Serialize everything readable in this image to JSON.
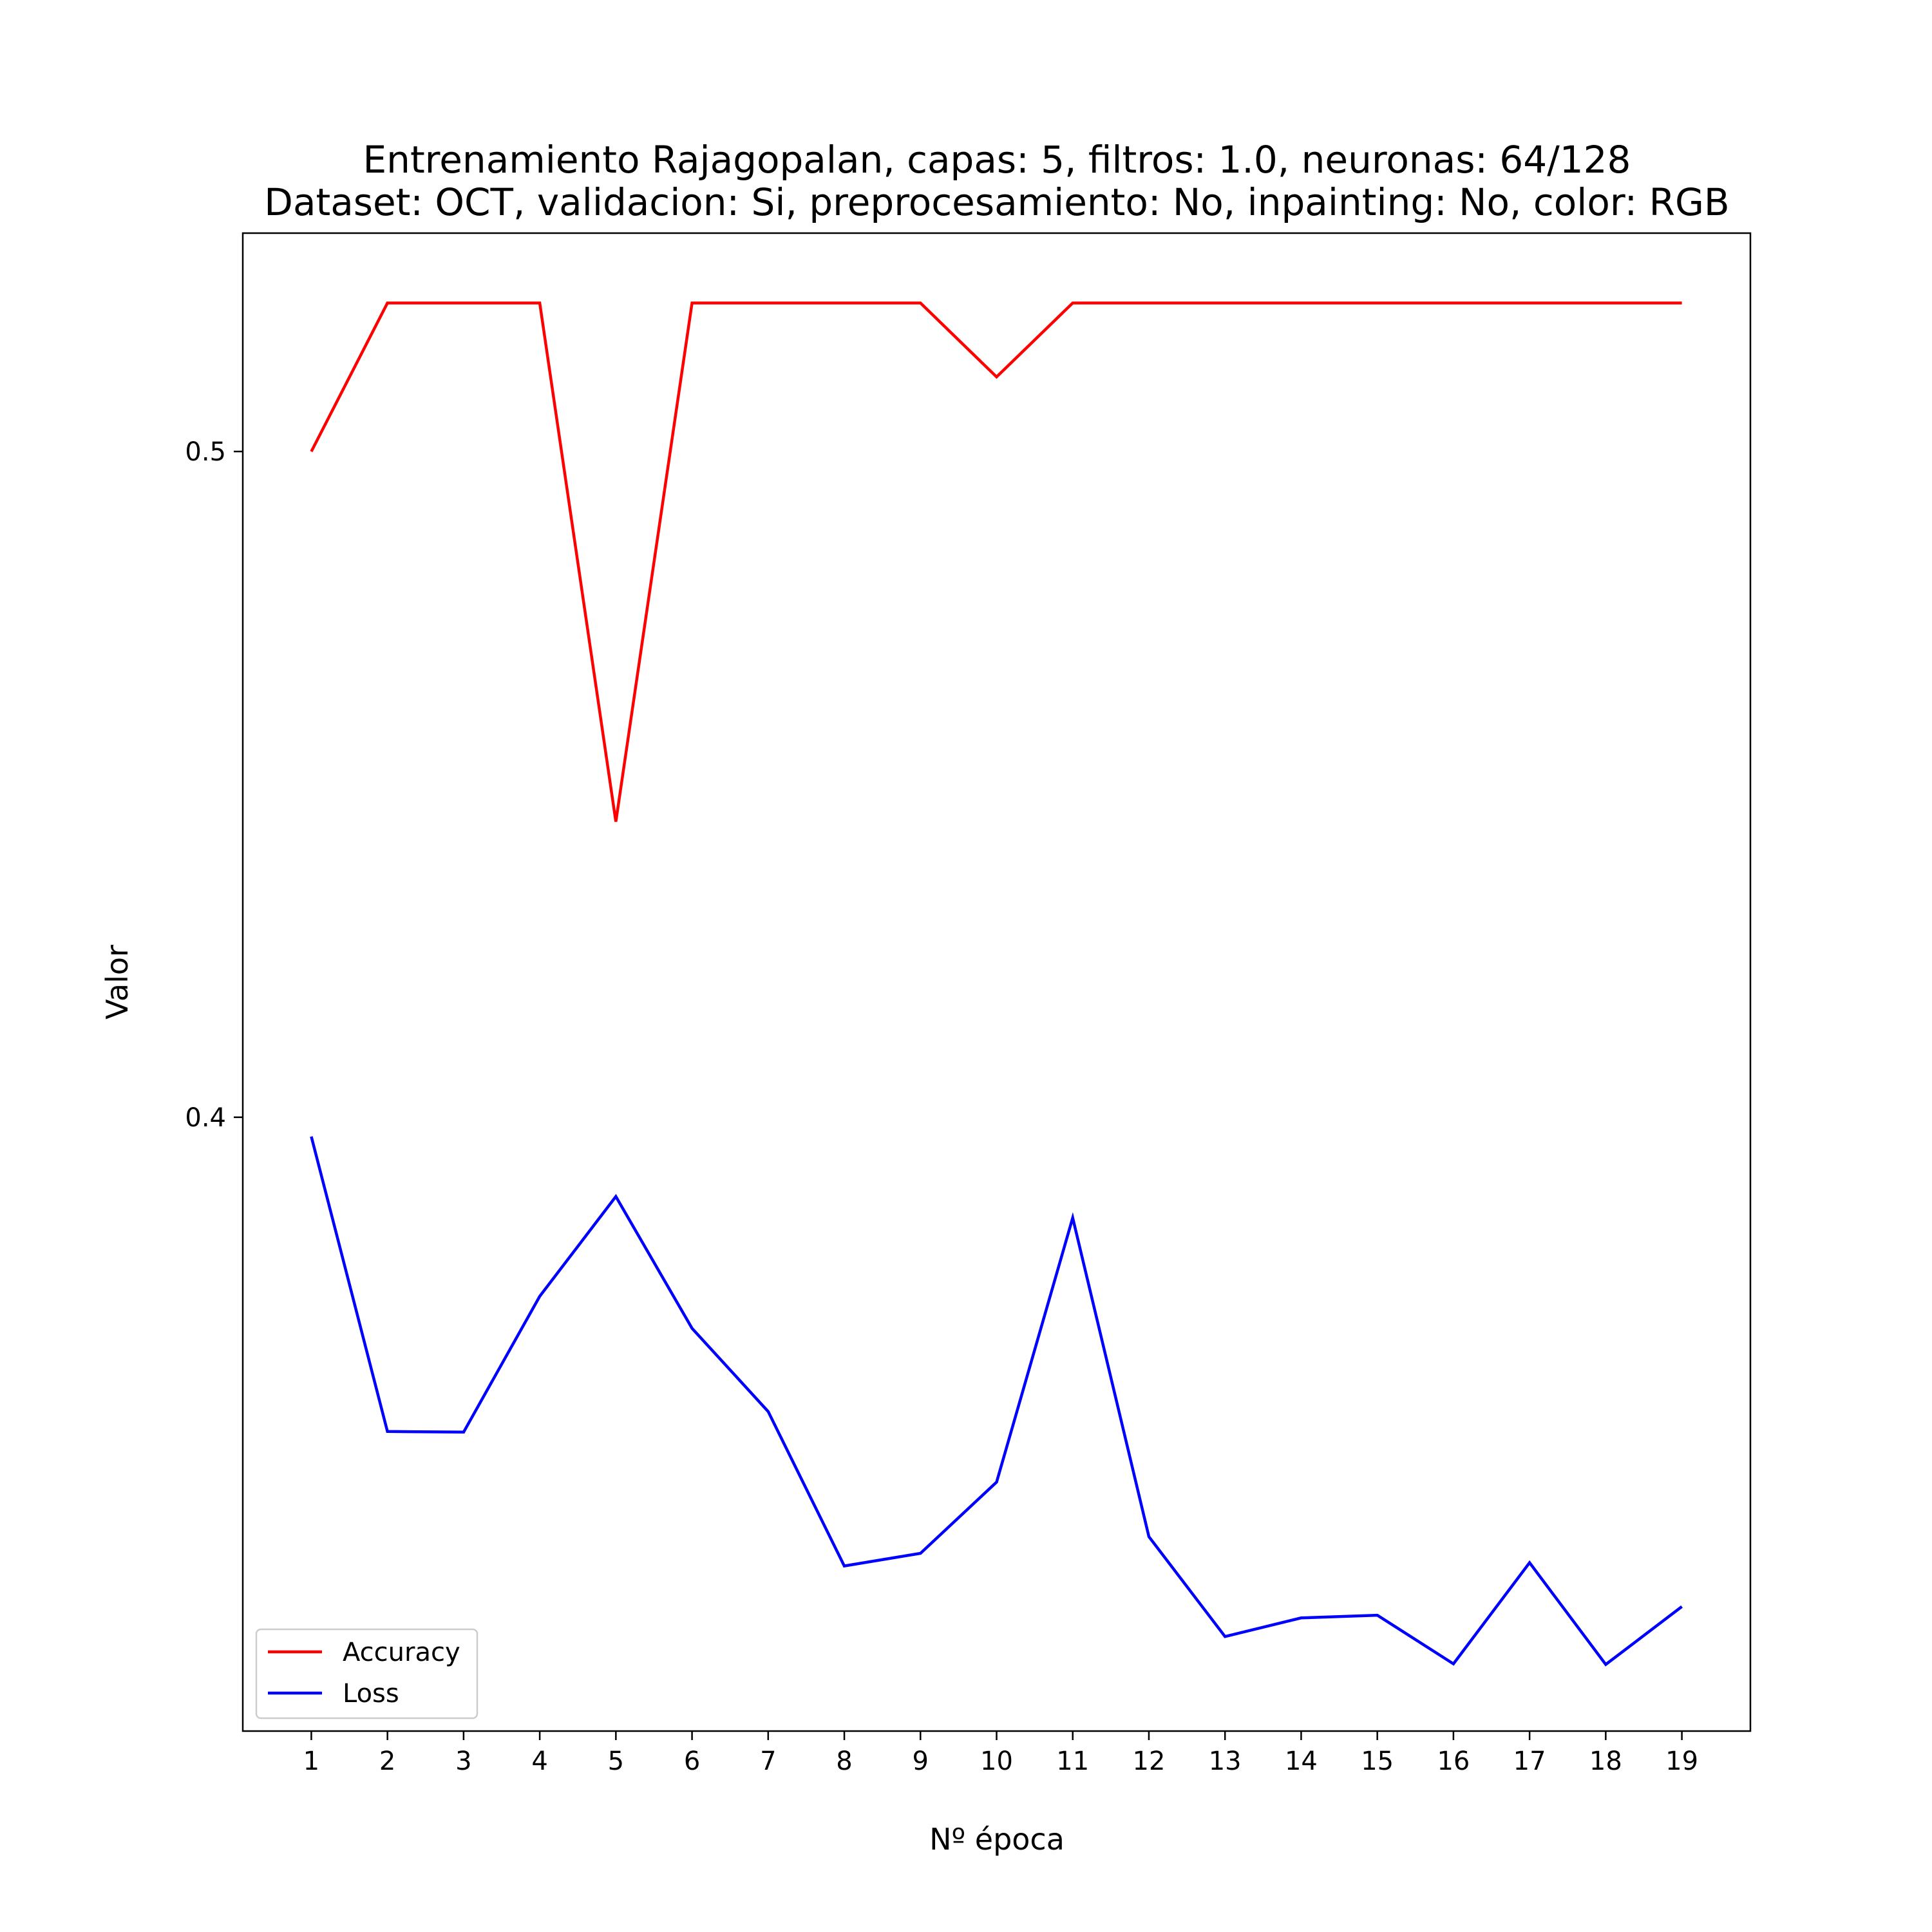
{
  "chart_data": {
    "type": "line",
    "title_line1": "Entrenamiento Rajagopalan, capas: 5, filtros: 1.0, neuronas: 64/128",
    "title_line2": "Dataset: OCT, validacion: Si, preprocesamiento: No, inpainting: No, color: RGB",
    "xlabel": "Nº época",
    "ylabel": "Valor",
    "x": [
      1,
      2,
      3,
      4,
      5,
      6,
      7,
      8,
      9,
      10,
      11,
      12,
      13,
      14,
      15,
      16,
      17,
      18,
      19
    ],
    "xlim": [
      0.1,
      19.9
    ],
    "ylim": [
      0.3078,
      0.5328
    ],
    "yticks": [
      0.4,
      0.5
    ],
    "ytick_labels": [
      "0.4",
      "0.5"
    ],
    "grid": false,
    "legend_position": "lower-left",
    "series": [
      {
        "name": "Accuracy",
        "color": "#ff0000",
        "values": [
          0.5,
          0.5223,
          0.5223,
          0.5223,
          0.4444,
          0.5223,
          0.5223,
          0.5223,
          0.5223,
          0.5112,
          0.5223,
          0.5223,
          0.5223,
          0.5223,
          0.5223,
          0.5223,
          0.5223,
          0.5223,
          0.5223
        ]
      },
      {
        "name": "Loss",
        "color": "#0000ff",
        "values": [
          0.3971,
          0.3528,
          0.3527,
          0.3731,
          0.3881,
          0.3683,
          0.3558,
          0.3326,
          0.3345,
          0.3452,
          0.3849,
          0.337,
          0.322,
          0.3248,
          0.3252,
          0.3179,
          0.3331,
          0.3178,
          0.3265
        ]
      }
    ]
  }
}
